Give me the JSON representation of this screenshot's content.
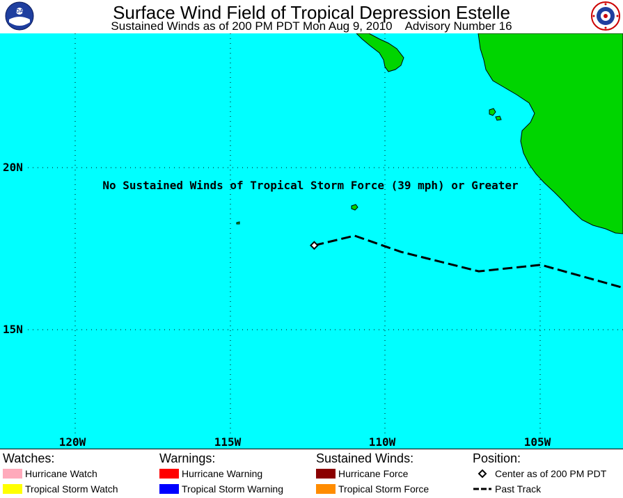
{
  "header": {
    "title": "Surface Wind Field of Tropical Depression Estelle",
    "subtitle_left": "Sustained Winds as of 200 PM PDT Mon Aug 9, 2010",
    "subtitle_right": "Advisory Number 16"
  },
  "map": {
    "lat_labels": [
      "20N",
      "15N"
    ],
    "lon_labels": [
      "120W",
      "115W",
      "110W",
      "105W"
    ],
    "notice": "No Sustained Winds of Tropical Storm Force (39 mph) or Greater",
    "colors": {
      "ocean": "#00ffff",
      "land": "#00d500"
    },
    "storm_center": {
      "lat": 17.6,
      "lon": -112.3
    },
    "past_track": [
      {
        "lat": 17.6,
        "lon": -112.3
      },
      {
        "lat": 17.9,
        "lon": -111.0
      },
      {
        "lat": 17.4,
        "lon": -109.5
      },
      {
        "lat": 16.8,
        "lon": -107.0
      },
      {
        "lat": 17.0,
        "lon": -105.0
      },
      {
        "lat": 16.2,
        "lon": -102.0
      }
    ]
  },
  "logos": {
    "left": "noaa-logo",
    "right": "nws-logo"
  },
  "legend": {
    "watches": {
      "heading": "Watches:",
      "items": [
        {
          "label": "Hurricane Watch",
          "color": "#ffaabb"
        },
        {
          "label": "Tropical Storm Watch",
          "color": "#ffff00"
        }
      ]
    },
    "warnings": {
      "heading": "Warnings:",
      "items": [
        {
          "label": "Hurricane Warning",
          "color": "#ff0000"
        },
        {
          "label": "Tropical Storm Warning",
          "color": "#0000ff"
        }
      ]
    },
    "winds": {
      "heading": "Sustained Winds:",
      "items": [
        {
          "label": "Hurricane Force",
          "color": "#8b0000"
        },
        {
          "label": "Tropical Storm Force",
          "color": "#ff8c00"
        }
      ]
    },
    "position": {
      "heading": "Position:",
      "items": [
        {
          "label": "Center as of 200 PM PDT",
          "icon": "diamond-icon"
        },
        {
          "label": "Past Track",
          "icon": "dashed-line-icon"
        }
      ]
    }
  }
}
